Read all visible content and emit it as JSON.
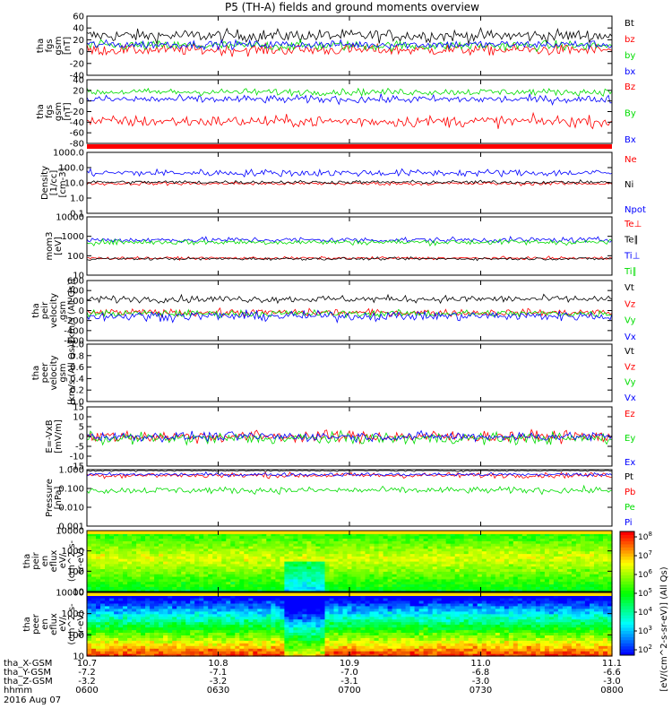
{
  "chart_data": {
    "type": "line",
    "title": "P5 (TH-A) fields and ground moments overview",
    "x_range_hhmm": [
      "0600",
      "0800"
    ],
    "panels": [
      {
        "id": "fgs-gsm",
        "ylabel": [
          "tha",
          "fgs",
          "gsm",
          "[nT]"
        ],
        "ylim": [
          -40,
          60
        ],
        "yticks": [
          "60",
          "40",
          "20",
          "0",
          "-20",
          "-40"
        ],
        "series": [
          {
            "name": "Bt",
            "color": "#000000",
            "base": 27,
            "amp": 9
          },
          {
            "name": "bz",
            "color": "#ff0000",
            "base": 3,
            "amp": 8
          },
          {
            "name": "by",
            "color": "#00dd00",
            "base": 10,
            "amp": 7
          },
          {
            "name": "bx",
            "color": "#0000ff",
            "base": 12,
            "amp": 6
          }
        ]
      },
      {
        "id": "fgs-gsm-2",
        "ylabel": [
          "tha",
          "fgs",
          "gsm",
          "[nT]"
        ],
        "ylim": [
          -90,
          40
        ],
        "yticks": [
          "40",
          "20",
          "0",
          "-20",
          "-40",
          "-60",
          "-80"
        ],
        "series": [
          {
            "name": "Bz",
            "color": "#ff0000",
            "base": -45,
            "amp": 10
          },
          {
            "name": "By",
            "color": "#00dd00",
            "base": 15,
            "amp": 6
          },
          {
            "name": "Bx",
            "color": "#0000ff",
            "base": 0,
            "amp": 7
          }
        ]
      },
      {
        "id": "density",
        "ylabel": [
          "Density",
          "[1/cc]",
          "[cm-3]"
        ],
        "ylim": [
          0.1,
          1000
        ],
        "log": true,
        "yticks": [
          "1000.0",
          "100.0",
          "10.0",
          "1.0",
          "0.1"
        ],
        "series": [
          {
            "name": "Ne",
            "color": "#ff0000",
            "base": 9,
            "amp": 0.1
          },
          {
            "name": "Ni",
            "color": "#000000",
            "base": 11,
            "amp": 0.1
          },
          {
            "name": "Npot",
            "color": "#0000ff",
            "base": 45,
            "amp": 0.2
          }
        ]
      },
      {
        "id": "temperature",
        "ylabel": [
          "mom3",
          "[eV]"
        ],
        "ylim": [
          10,
          10000
        ],
        "log": true,
        "yticks": [
          "10000",
          "1000",
          "100",
          "10"
        ],
        "series": [
          {
            "name": "Te⊥",
            "color": "#ff0000",
            "base": 75,
            "amp": 0.06
          },
          {
            "name": "Te∥",
            "color": "#000000",
            "base": 70,
            "amp": 0.06
          },
          {
            "name": "Ti⊥",
            "color": "#0000ff",
            "base": 650,
            "amp": 0.12
          },
          {
            "name": "Ti∥",
            "color": "#00dd00",
            "base": 500,
            "amp": 0.12
          }
        ]
      },
      {
        "id": "peir-velocity",
        "ylabel": [
          "tha",
          "peir",
          "velocity",
          "gsm",
          "[km/s (All Qs)]"
        ],
        "ylim": [
          -600,
          600
        ],
        "yticks": [
          "600",
          "400",
          "200",
          "0",
          "-200",
          "-400",
          "-600"
        ],
        "series": [
          {
            "name": "Vt",
            "color": "#000000",
            "base": 230,
            "amp": 60
          },
          {
            "name": "Vz",
            "color": "#ff0000",
            "base": -40,
            "amp": 60
          },
          {
            "name": "Vy",
            "color": "#00dd00",
            "base": -60,
            "amp": 60
          },
          {
            "name": "Vx",
            "color": "#0000ff",
            "base": -110,
            "amp": 80
          }
        ]
      },
      {
        "id": "peer-velocity",
        "ylabel": [
          "tha",
          "peer",
          "velocity",
          "gsm",
          "[km/s (All Qs)]"
        ],
        "ylim": [
          0,
          1
        ],
        "yticks": [
          "1.0",
          "0.8",
          "0.6",
          "0.4",
          "0.2",
          "0.0"
        ],
        "series": [
          {
            "name": "Vt",
            "color": "#000000"
          },
          {
            "name": "Vz",
            "color": "#ff0000"
          },
          {
            "name": "Vy",
            "color": "#00dd00"
          },
          {
            "name": "Vx",
            "color": "#0000ff"
          }
        ]
      },
      {
        "id": "efield",
        "ylabel": [
          "E=-VxB",
          "[mV/m]"
        ],
        "ylim": [
          -15,
          15
        ],
        "yticks": [
          "15",
          "10",
          "5",
          "0",
          "-5",
          "-10",
          "-15"
        ],
        "series": [
          {
            "name": "Ez",
            "color": "#ff0000",
            "base": 0,
            "amp": 2.5
          },
          {
            "name": "Ey",
            "color": "#00dd00",
            "base": -1,
            "amp": 2.5
          },
          {
            "name": "Ex",
            "color": "#0000ff",
            "base": 0,
            "amp": 2
          }
        ]
      },
      {
        "id": "pressure",
        "ylabel": [
          "Pressure",
          "[nPa]"
        ],
        "ylim": [
          0.001,
          1
        ],
        "log": true,
        "yticks": [
          "1.000",
          "0.100",
          "0.010",
          "0.001"
        ],
        "series": [
          {
            "name": "Pt",
            "color": "#000000",
            "base": 0.9,
            "amp": 0.05
          },
          {
            "name": "Pb",
            "color": "#ff0000",
            "base": 0.5,
            "amp": 0.12
          },
          {
            "name": "Pe",
            "color": "#00dd00",
            "base": 0.08,
            "amp": 0.15
          },
          {
            "name": "Pi",
            "color": "#0000ff",
            "base": 0.55,
            "amp": 0.08
          }
        ]
      },
      {
        "id": "peir-spec",
        "type": "heatmap",
        "ylabel": [
          "tha",
          "peir",
          "en",
          "eflux",
          "eV/",
          "(cm^2-s-",
          "sr-eV)"
        ],
        "ylim": [
          5,
          20000
        ],
        "log": true,
        "yticks": [
          "10000",
          "1000",
          "100",
          "10"
        ]
      },
      {
        "id": "peer-spec",
        "type": "heatmap",
        "ylabel": [
          "tha",
          "peer",
          "en",
          "eflux",
          "eV/",
          "(cm^2-s-",
          "sr-eV)"
        ],
        "ylim": [
          5,
          20000
        ],
        "log": true,
        "yticks": [
          "10000",
          "1000",
          "100",
          "10"
        ]
      }
    ],
    "colorbar": {
      "label": "[eV/(cm^2-s-sr-eV)] (All Qs)",
      "ticks": [
        "10^8",
        "10^7",
        "10^6",
        "10^5",
        "10^4",
        "10^3",
        "10^2"
      ],
      "tick_exp": [
        "8",
        "7",
        "6",
        "5",
        "4",
        "3",
        "2"
      ]
    },
    "x_axis": {
      "rows": [
        {
          "label": "tha_X-GSM",
          "values": [
            "10.7",
            "10.8",
            "10.9",
            "11.0",
            "11.1"
          ]
        },
        {
          "label": "tha_Y-GSM",
          "values": [
            "-7.2",
            "-7.1",
            "-7.0",
            "-6.8",
            "-6.6"
          ]
        },
        {
          "label": "tha_Z-GSM",
          "values": [
            "-3.2",
            "-3.2",
            "-3.1",
            "-3.0",
            "-3.0"
          ]
        },
        {
          "label": "hhmm",
          "values": [
            "0600",
            "0630",
            "0700",
            "0730",
            "0800"
          ]
        }
      ],
      "date": "2016 Aug 07"
    }
  }
}
